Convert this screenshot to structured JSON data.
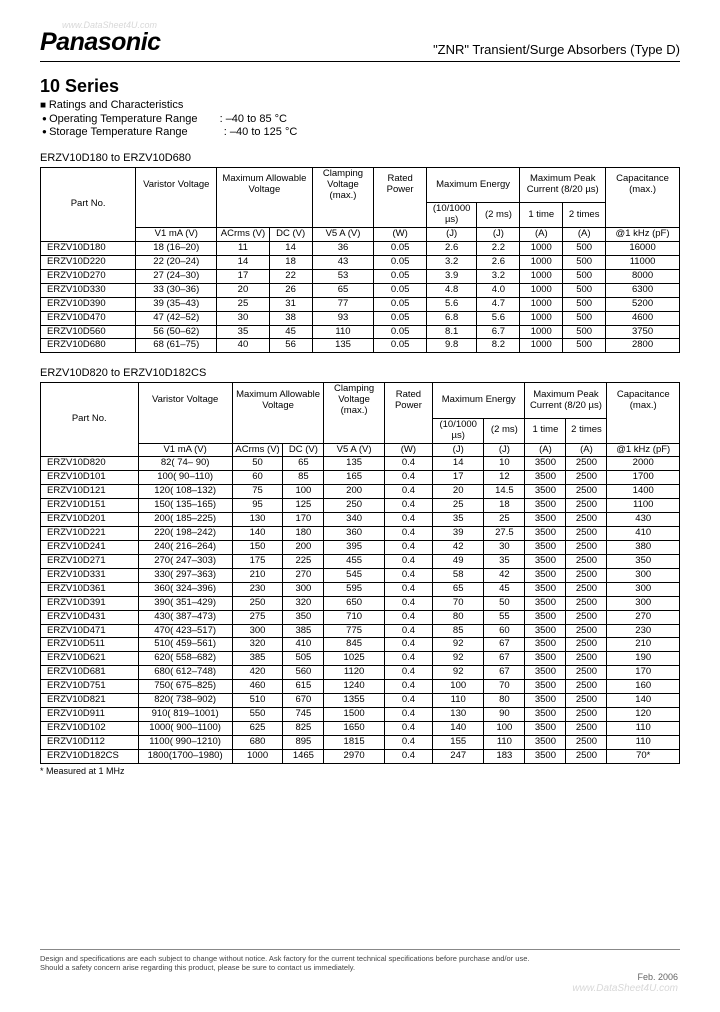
{
  "watermark_top": "www.DataSheet4U.com",
  "watermark_bottom": "www.DataSheet4U.com",
  "brand": "Panasonic",
  "doc_title": "\"ZNR\" Transient/Surge Absorbers (Type D)",
  "series": "10 Series",
  "ratings_header": "Ratings and Characteristics",
  "op_temp_label": "Operating Temperature Range",
  "op_temp_value": ": –40 to 85 °C",
  "storage_temp_label": "Storage Temperature Range",
  "storage_temp_value": ": –40 to 125 °C",
  "range1_caption": "ERZV10D180 to ERZV10D680",
  "range2_caption": "ERZV10D820 to ERZV10D182CS",
  "headers": {
    "part": "Part No.",
    "varistor": "Varistor Voltage",
    "allow": "Maximum Allowable Voltage",
    "clamp": "Clamping Voltage (max.)",
    "power": "Rated Power",
    "energy": "Maximum Energy",
    "peak": "Maximum Peak Current (8/20 µs)",
    "cap": "Capacitance (max.)",
    "sub_varistor": "V1 mA (V)",
    "sub_acrms": "ACrms (V)",
    "sub_dc": "DC (V)",
    "sub_clamp": "V5 A (V)",
    "sub_power": "(W)",
    "sub_e1": "(10/1000 µs)",
    "sub_e2": "(2 ms)",
    "sub_p1": "1 time",
    "sub_p2": "2 times",
    "sub_j": "(J)",
    "sub_a": "(A)",
    "sub_cap": "@1 kHz (pF)"
  },
  "table1_rows": [
    [
      "ERZV10D180",
      "18 (16–20)",
      "11",
      "14",
      "36",
      "0.05",
      "2.6",
      "2.2",
      "1000",
      "500",
      "16000"
    ],
    [
      "ERZV10D220",
      "22 (20–24)",
      "14",
      "18",
      "43",
      "0.05",
      "3.2",
      "2.6",
      "1000",
      "500",
      "11000"
    ],
    [
      "ERZV10D270",
      "27 (24–30)",
      "17",
      "22",
      "53",
      "0.05",
      "3.9",
      "3.2",
      "1000",
      "500",
      "8000"
    ],
    [
      "ERZV10D330",
      "33 (30–36)",
      "20",
      "26",
      "65",
      "0.05",
      "4.8",
      "4.0",
      "1000",
      "500",
      "6300"
    ],
    [
      "ERZV10D390",
      "39 (35–43)",
      "25",
      "31",
      "77",
      "0.05",
      "5.6",
      "4.7",
      "1000",
      "500",
      "5200"
    ],
    [
      "ERZV10D470",
      "47 (42–52)",
      "30",
      "38",
      "93",
      "0.05",
      "6.8",
      "5.6",
      "1000",
      "500",
      "4600"
    ],
    [
      "ERZV10D560",
      "56 (50–62)",
      "35",
      "45",
      "110",
      "0.05",
      "8.1",
      "6.7",
      "1000",
      "500",
      "3750"
    ],
    [
      "ERZV10D680",
      "68 (61–75)",
      "40",
      "56",
      "135",
      "0.05",
      "9.8",
      "8.2",
      "1000",
      "500",
      "2800"
    ]
  ],
  "table2_rows": [
    [
      "ERZV10D820",
      "82( 74– 90)",
      "50",
      "65",
      "135",
      "0.4",
      "14",
      "10",
      "3500",
      "2500",
      "2000"
    ],
    [
      "ERZV10D101",
      "100( 90–110)",
      "60",
      "85",
      "165",
      "0.4",
      "17",
      "12",
      "3500",
      "2500",
      "1700"
    ],
    [
      "ERZV10D121",
      "120( 108–132)",
      "75",
      "100",
      "200",
      "0.4",
      "20",
      "14.5",
      "3500",
      "2500",
      "1400"
    ],
    [
      "ERZV10D151",
      "150( 135–165)",
      "95",
      "125",
      "250",
      "0.4",
      "25",
      "18",
      "3500",
      "2500",
      "1100"
    ],
    [
      "ERZV10D201",
      "200( 185–225)",
      "130",
      "170",
      "340",
      "0.4",
      "35",
      "25",
      "3500",
      "2500",
      "430"
    ],
    [
      "ERZV10D221",
      "220( 198–242)",
      "140",
      "180",
      "360",
      "0.4",
      "39",
      "27.5",
      "3500",
      "2500",
      "410"
    ],
    [
      "ERZV10D241",
      "240( 216–264)",
      "150",
      "200",
      "395",
      "0.4",
      "42",
      "30",
      "3500",
      "2500",
      "380"
    ],
    [
      "ERZV10D271",
      "270( 247–303)",
      "175",
      "225",
      "455",
      "0.4",
      "49",
      "35",
      "3500",
      "2500",
      "350"
    ],
    [
      "ERZV10D331",
      "330( 297–363)",
      "210",
      "270",
      "545",
      "0.4",
      "58",
      "42",
      "3500",
      "2500",
      "300"
    ],
    [
      "ERZV10D361",
      "360( 324–396)",
      "230",
      "300",
      "595",
      "0.4",
      "65",
      "45",
      "3500",
      "2500",
      "300"
    ],
    [
      "ERZV10D391",
      "390( 351–429)",
      "250",
      "320",
      "650",
      "0.4",
      "70",
      "50",
      "3500",
      "2500",
      "300"
    ],
    [
      "ERZV10D431",
      "430( 387–473)",
      "275",
      "350",
      "710",
      "0.4",
      "80",
      "55",
      "3500",
      "2500",
      "270"
    ],
    [
      "ERZV10D471",
      "470( 423–517)",
      "300",
      "385",
      "775",
      "0.4",
      "85",
      "60",
      "3500",
      "2500",
      "230"
    ],
    [
      "ERZV10D511",
      "510( 459–561)",
      "320",
      "410",
      "845",
      "0.4",
      "92",
      "67",
      "3500",
      "2500",
      "210"
    ],
    [
      "ERZV10D621",
      "620( 558–682)",
      "385",
      "505",
      "1025",
      "0.4",
      "92",
      "67",
      "3500",
      "2500",
      "190"
    ],
    [
      "ERZV10D681",
      "680( 612–748)",
      "420",
      "560",
      "1120",
      "0.4",
      "92",
      "67",
      "3500",
      "2500",
      "170"
    ],
    [
      "ERZV10D751",
      "750( 675–825)",
      "460",
      "615",
      "1240",
      "0.4",
      "100",
      "70",
      "3500",
      "2500",
      "160"
    ],
    [
      "ERZV10D821",
      "820( 738–902)",
      "510",
      "670",
      "1355",
      "0.4",
      "110",
      "80",
      "3500",
      "2500",
      "140"
    ],
    [
      "ERZV10D911",
      "910( 819–1001)",
      "550",
      "745",
      "1500",
      "0.4",
      "130",
      "90",
      "3500",
      "2500",
      "120"
    ],
    [
      "ERZV10D102",
      "1000( 900–1100)",
      "625",
      "825",
      "1650",
      "0.4",
      "140",
      "100",
      "3500",
      "2500",
      "110"
    ],
    [
      "ERZV10D112",
      "1100( 990–1210)",
      "680",
      "895",
      "1815",
      "0.4",
      "155",
      "110",
      "3500",
      "2500",
      "110"
    ],
    [
      "ERZV10D182CS",
      "1800(1700–1980)",
      "1000",
      "1465",
      "2970",
      "0.4",
      "247",
      "183",
      "3500",
      "2500",
      "70*"
    ]
  ],
  "footnote": "* Measured at 1 MHz",
  "disclaimer1": "Design and specifications are each subject to change without notice. Ask factory for the current technical specifications before purchase and/or use.",
  "disclaimer2": "Should a safety concern arise regarding this product, please be sure to contact us immediately.",
  "footer_date": "Feb. 2006"
}
